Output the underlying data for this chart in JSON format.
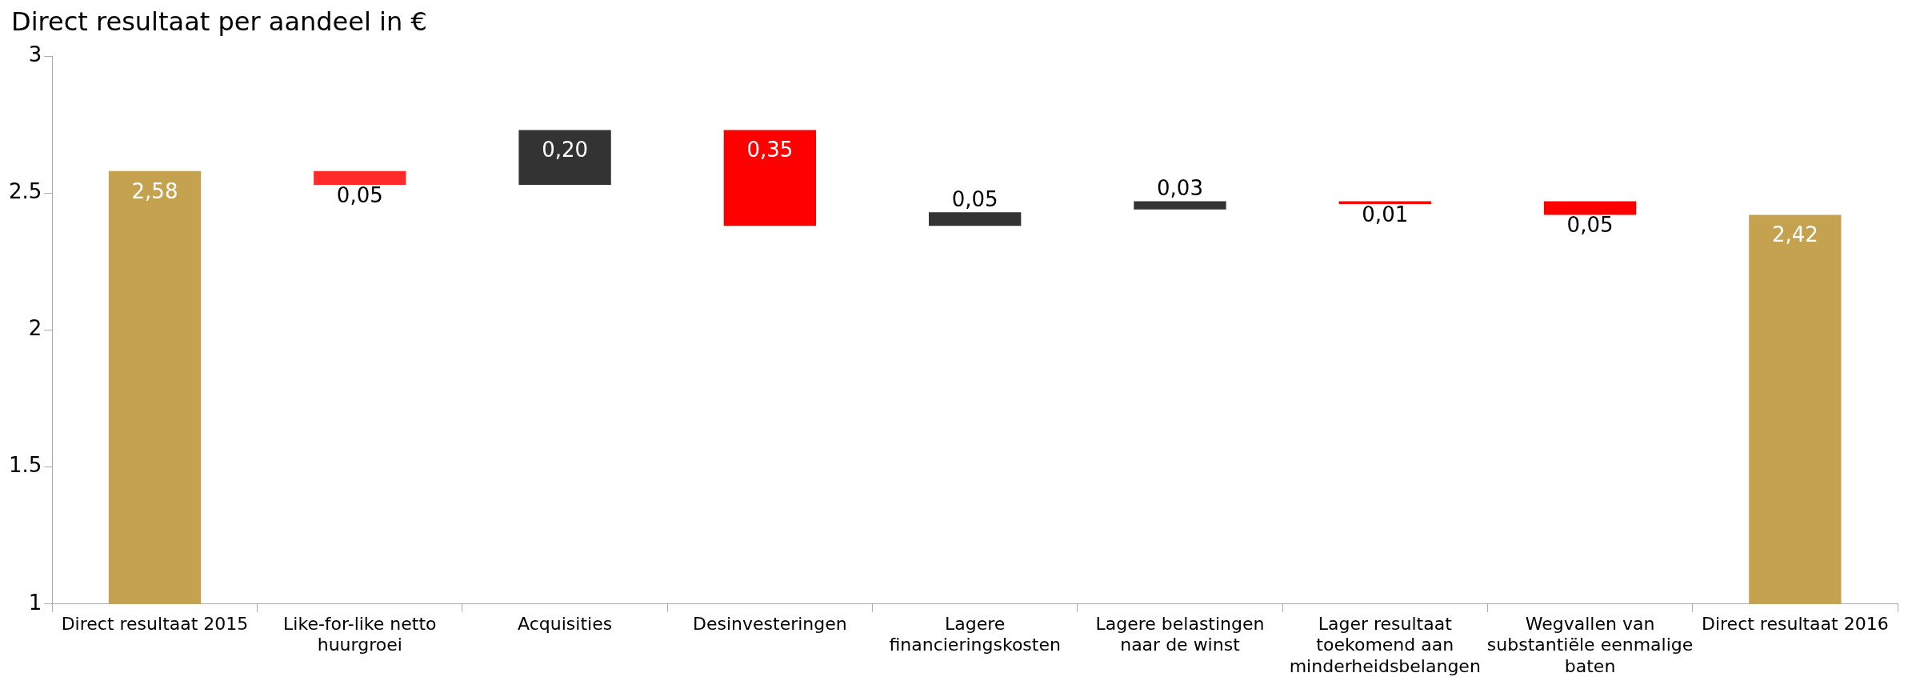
{
  "chart_data": {
    "type": "bar",
    "ylabel": "Direct resultaat per aandeel in €",
    "categories": [
      "Direct resultaat 2015",
      "Like-for-like netto huurgroei",
      "Acquisities",
      "Desinvesteringen",
      "Lagere financieringskosten",
      "Lagere belastingen naar de winst",
      "Lager resultaat toekomend aan minderheidsbelangen",
      "Wegvallen van substantiële eenmalige baten",
      "Direct resultaat 2016"
    ],
    "values": [
      2.58,
      -0.05,
      0.2,
      -0.35,
      0.05,
      0.03,
      -0.01,
      -0.05,
      2.42
    ],
    "base": [
      null,
      2.58,
      2.53,
      2.73,
      2.38,
      2.44,
      2.47,
      2.47,
      null
    ],
    "colors": [
      "#c4a24f",
      "#ff2b2b",
      "#333333",
      "#ff0000",
      "#333333",
      "#333333",
      "#ff0000",
      "#ff0000",
      "#c4a24f"
    ],
    "value_labels": [
      "2,58",
      "0,05",
      "0,20",
      "0,35",
      "0,05",
      "0,03",
      "0,01",
      "0,05",
      "2,42"
    ],
    "ylim": [
      1,
      3
    ],
    "yticks": [
      1,
      1.5,
      2,
      2.5,
      3
    ],
    "grid": false,
    "legend": false
  }
}
